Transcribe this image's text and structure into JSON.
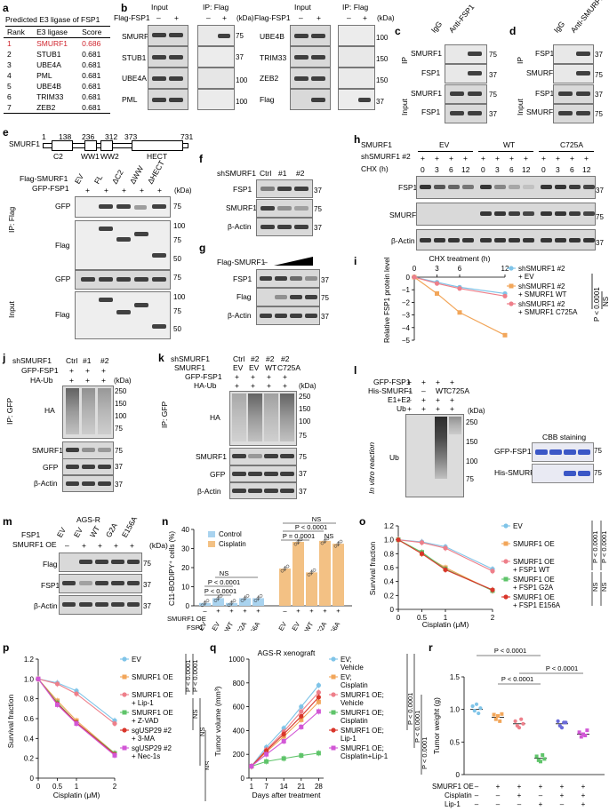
{
  "panels": {
    "a": "a",
    "b": "b",
    "c": "c",
    "d": "d",
    "e": "e",
    "f": "f",
    "g": "g",
    "h": "h",
    "i": "i",
    "j": "j",
    "k": "k",
    "l": "l",
    "m": "m",
    "n": "n",
    "o": "o",
    "p": "p",
    "q": "q",
    "r": "r"
  },
  "common": {
    "kda": "(kDa)",
    "ip": "IP",
    "input": "Input",
    "ip_flag": "IP: Flag",
    "ip_gfp": "IP: GFP",
    "ctrl": "Ctrl",
    "sh1": "#1",
    "sh2": "#2",
    "plus": "+",
    "minus": "–",
    "ev": "EV",
    "wt": "WT",
    "bactin": "β-Actin",
    "smurf1": "SMURF1",
    "fsp1": "FSP1",
    "flag": "Flag",
    "gfp": "GFP",
    "ha": "HA",
    "ub": "Ub",
    "igg": "IgG"
  },
  "a": {
    "title": "Predicted E3 ligase of FSP1",
    "headers": [
      "Rank",
      "E3 ligase",
      "Score"
    ],
    "rows": [
      [
        "1",
        "SMURF1",
        "0.686"
      ],
      [
        "2",
        "STUB1",
        "0.681"
      ],
      [
        "3",
        "UBE4A",
        "0.681"
      ],
      [
        "4",
        "PML",
        "0.681"
      ],
      [
        "5",
        "UBE4B",
        "0.681"
      ],
      [
        "6",
        "TRIM33",
        "0.681"
      ],
      [
        "7",
        "ZEB2",
        "0.681"
      ]
    ]
  },
  "b": {
    "flag_fsp1": "Flag-FSP1",
    "left_blots": [
      "SMURF1",
      "STUB1",
      "UBE4A",
      "PML"
    ],
    "left_marks": [
      "75",
      "37",
      "100",
      "100"
    ],
    "right_blots": [
      "UBE4B",
      "TRIM33",
      "ZEB2",
      "Flag"
    ],
    "right_marks": [
      "100",
      "150",
      "150",
      "37"
    ]
  },
  "c": {
    "anti": "Anti-FSP1",
    "marks": [
      "75",
      "37",
      "75",
      "37"
    ]
  },
  "d": {
    "anti": "Anti-SMURF1",
    "marks": [
      "37",
      "75",
      "37",
      "75"
    ]
  },
  "e": {
    "domain_label": "SMURF1",
    "ticks": [
      "1",
      "138",
      "236",
      "312",
      "373",
      "731"
    ],
    "domains": [
      "C2",
      "WW1",
      "WW2",
      "HECT"
    ],
    "flag_smurf1": "Flag-SMURF1",
    "gfp_fsp1": "GFP-FSP1",
    "constructs": [
      "EV",
      "FL",
      "ΔC2",
      "ΔWW",
      "ΔHECT"
    ],
    "marks_ip_gfp": [
      "75"
    ],
    "marks_ip_flag": [
      "100",
      "75",
      "50"
    ],
    "marks_in_gfp": [
      "75"
    ],
    "marks_in_flag": [
      "100",
      "75",
      "50"
    ]
  },
  "f": {
    "shsmurf1": "shSMURF1",
    "marks": [
      "37",
      "75",
      "37"
    ]
  },
  "g": {
    "flag_smurf1": "Flag-SMURF1",
    "marks": [
      "37",
      "75",
      "37"
    ]
  },
  "h": {
    "shsmurf1_2": "shSMURF1 #2",
    "groups": [
      "EV",
      "WT",
      "C725A"
    ],
    "chx": "CHX (h)",
    "times": [
      "0",
      "3",
      "6",
      "12"
    ],
    "marks": [
      "37",
      "75",
      "37"
    ]
  },
  "i": {
    "top_label": "CHX treatment (h)",
    "ylabel": "Relative FSP1 protein level (Log₂)",
    "stat": "P < 0.0001",
    "ns": "NS"
  },
  "j": {
    "ha_ub": "HA-Ub",
    "marks_ha": [
      "250",
      "150",
      "100",
      "75"
    ],
    "marks": [
      "75",
      "37",
      "37"
    ]
  },
  "k": {
    "c725a": "C725A",
    "ha_ub": "HA-Ub",
    "marks_ha": [
      "250",
      "150",
      "100",
      "75"
    ],
    "marks": [
      "75",
      "37",
      "37"
    ]
  },
  "l": {
    "gfp_fsp1": "GFP-FSP1",
    "his_smurf1": "His-SMURF1",
    "e1e2": "E1+E2",
    "c725a": "C725A",
    "invitro": "In vitro reaction",
    "cbb": "CBB staining",
    "marks": [
      "250",
      "150",
      "100",
      "75"
    ],
    "cbb_marks": [
      "75",
      "75"
    ]
  },
  "m": {
    "title": "AGS-R",
    "g2a": "G2A",
    "e156a": "E156A",
    "marks": [
      "75",
      "37",
      "37"
    ]
  },
  "n": {
    "smurf1_oe": "SMURF1 OE",
    "cats": [
      "EV",
      "EV",
      "WT",
      "G2A",
      "E156A"
    ]
  },
  "o": {
    "smurf1_oe": "SMURF1 OE",
    "ns": "NS"
  },
  "p": {
    "ns": "NS"
  },
  "q": {
    "title": "AGS-R xenograft"
  },
  "r": {
    "ylabel": "Tumor weight (g)",
    "row_labels": [
      "SMURF1 OE",
      "Cisplatin",
      "Lip-1"
    ],
    "row_signs": [
      [
        "–",
        "+",
        "+",
        "+",
        "+",
        "+"
      ],
      [
        "–",
        "–",
        "+",
        "–",
        "+",
        "+"
      ],
      [
        "–",
        "–",
        "–",
        "+",
        "–",
        "+"
      ]
    ]
  },
  "chart_data": [
    {
      "panel": "i",
      "type": "line",
      "x": [
        0,
        3,
        6,
        12
      ],
      "xlabel": "CHX treatment (h)",
      "ylabel": "Relative FSP1 protein level (Log₂)",
      "ylim": [
        -5,
        0
      ],
      "series": [
        {
          "name": "shSMURF1 #2 + EV",
          "color": "#7fc4e8",
          "values": [
            0,
            -0.4,
            -0.8,
            -1.3
          ]
        },
        {
          "name": "shSMURF1 #2 + SMURF1 WT",
          "color": "#f2a65a",
          "values": [
            0,
            -1.3,
            -2.8,
            -4.6
          ]
        },
        {
          "name": "shSMURF1 #2 + SMURF1 C725A",
          "color": "#ee7f8a",
          "values": [
            0,
            -0.5,
            -0.9,
            -1.5
          ]
        }
      ],
      "stat": "P < 0.0001",
      "ns": "NS"
    },
    {
      "panel": "n",
      "type": "bar",
      "ylabel": "C11-BODIPY⁺ cells (%)",
      "ylim": [
        0,
        40
      ],
      "yticks": [
        0,
        10,
        20,
        30,
        40
      ],
      "categories": [
        "EV",
        "EV",
        "WT",
        "G2A",
        "E156A"
      ],
      "smurf1_oe": [
        "–",
        "+",
        "+",
        "+",
        "+"
      ],
      "series": [
        {
          "name": "Control",
          "color": "#a9d3ef",
          "values": [
            1.5,
            4,
            1.5,
            4,
            4
          ]
        },
        {
          "name": "Cisplatin",
          "color": "#f3c184",
          "values": [
            19.5,
            33.5,
            17.5,
            34,
            32.5
          ]
        }
      ],
      "annotations": [
        "P < 0.0001",
        "P < 0.0001",
        "P = 0.0001",
        "NS",
        "NS",
        "NS"
      ]
    },
    {
      "panel": "o",
      "type": "line",
      "x": [
        0,
        0.5,
        1,
        2
      ],
      "xlabel": "Cisplatin (μM)",
      "ylabel": "Survival fraction",
      "ylim": [
        0,
        1.2
      ],
      "yticks": [
        0,
        0.2,
        0.4,
        0.6,
        0.8,
        1.0,
        1.2
      ],
      "series": [
        {
          "name": "EV",
          "color": "#7fc4e8",
          "values": [
            1.0,
            0.97,
            0.9,
            0.58
          ]
        },
        {
          "name": "SMURF1 OE",
          "color": "#f2a65a",
          "values": [
            1.0,
            0.8,
            0.6,
            0.27
          ]
        },
        {
          "name": "SMURF1 OE + FSP1 WT",
          "color": "#ee7f8a",
          "values": [
            1.0,
            0.96,
            0.88,
            0.55
          ]
        },
        {
          "name": "SMURF1 OE + FSP1 G2A",
          "color": "#5fc46a",
          "values": [
            1.0,
            0.82,
            0.58,
            0.27
          ]
        },
        {
          "name": "SMURF1 OE + FSP1 E156A",
          "color": "#d9362b",
          "values": [
            1.0,
            0.8,
            0.57,
            0.28
          ]
        }
      ],
      "annotations": [
        "P < 0.0001",
        "P < 0.0001",
        "NS",
        "NS"
      ]
    },
    {
      "panel": "p",
      "type": "line",
      "x": [
        0,
        0.5,
        1,
        2
      ],
      "xlabel": "Cisplatin (μM)",
      "ylabel": "Survival fraction",
      "ylim": [
        0,
        1.2
      ],
      "yticks": [
        0,
        0.2,
        0.4,
        0.6,
        0.8,
        1.0,
        1.2
      ],
      "series": [
        {
          "name": "EV",
          "color": "#7fc4e8",
          "values": [
            1.0,
            0.96,
            0.88,
            0.58
          ]
        },
        {
          "name": "SMURF1 OE",
          "color": "#f2a65a",
          "values": [
            1.0,
            0.78,
            0.58,
            0.25
          ]
        },
        {
          "name": "SMURF1 OE + Lip-1",
          "color": "#ee7f8a",
          "values": [
            1.0,
            0.95,
            0.85,
            0.55
          ]
        },
        {
          "name": "SMURF1 OE + Z-VAD",
          "color": "#5fc46a",
          "values": [
            1.0,
            0.76,
            0.56,
            0.25
          ]
        },
        {
          "name": "sgUSP29 #2 + 3-MA",
          "color": "#d9362b",
          "values": [
            1.0,
            0.75,
            0.56,
            0.24
          ]
        },
        {
          "name": "sgUSP29 #2 + Nec-1s",
          "color": "#d257d6",
          "values": [
            1.0,
            0.74,
            0.55,
            0.23
          ]
        }
      ],
      "annotations": [
        "P < 0.0001",
        "P < 0.0001",
        "NS",
        "NS",
        "NS"
      ]
    },
    {
      "panel": "q",
      "type": "line",
      "title": "AGS-R xenograft",
      "x": [
        1,
        7,
        14,
        21,
        28
      ],
      "xlabel": "Days after treatment",
      "ylabel": "Tumor volume (mm³)",
      "ylim": [
        0,
        1000
      ],
      "yticks": [
        0,
        200,
        400,
        600,
        800,
        1000
      ],
      "series": [
        {
          "name": "EV; Vehicle",
          "color": "#7fc4e8",
          "values": [
            100,
            260,
            420,
            600,
            780
          ]
        },
        {
          "name": "EV; Cisplatin",
          "color": "#f2a65a",
          "values": [
            100,
            220,
            350,
            490,
            640
          ]
        },
        {
          "name": "SMURF1 OE; Vehicle",
          "color": "#ee7f8a",
          "values": [
            100,
            240,
            390,
            560,
            720
          ]
        },
        {
          "name": "SMURF1 OE; Cisplatin",
          "color": "#5fc46a",
          "values": [
            100,
            140,
            165,
            190,
            210
          ]
        },
        {
          "name": "SMURF1 OE; Lip-1",
          "color": "#d9362b",
          "values": [
            100,
            230,
            370,
            520,
            680
          ]
        },
        {
          "name": "SMURF1 OE; Cisplatin+Lip-1",
          "color": "#d257d6",
          "values": [
            100,
            200,
            310,
            430,
            560
          ]
        }
      ],
      "annotations": [
        "P < 0.0001",
        "P < 0.0001",
        "P < 0.0001"
      ]
    },
    {
      "panel": "r",
      "type": "scatter",
      "ylabel": "Tumor weight (g)",
      "ylim": [
        0,
        1.5
      ],
      "yticks": [
        0,
        0.5,
        1.0,
        1.5
      ],
      "groups": [
        {
          "color": "#7fc4e8",
          "mean": 1.0,
          "points": [
            1.05,
            0.98,
            1.08,
            0.94,
            1.02
          ]
        },
        {
          "color": "#f2a65a",
          "mean": 0.88,
          "points": [
            0.92,
            0.85,
            0.9,
            0.82,
            0.93
          ]
        },
        {
          "color": "#ee7f8a",
          "mean": 0.78,
          "points": [
            0.82,
            0.75,
            0.72,
            0.85,
            0.78
          ]
        },
        {
          "color": "#5fc46a",
          "mean": 0.25,
          "points": [
            0.28,
            0.22,
            0.2,
            0.3,
            0.24
          ]
        },
        {
          "color": "#6a6ad8",
          "mean": 0.78,
          "points": [
            0.82,
            0.75,
            0.72,
            0.8,
            0.8
          ]
        },
        {
          "color": "#d257d6",
          "mean": 0.62,
          "points": [
            0.65,
            0.58,
            0.62,
            0.6,
            0.68
          ]
        }
      ],
      "annotations": [
        "P < 0.0001",
        "P < 0.0001",
        "P < 0.0001"
      ]
    }
  ]
}
